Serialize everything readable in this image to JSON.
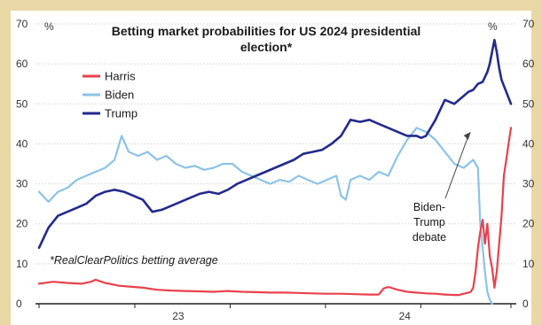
{
  "chart_data": {
    "type": "line",
    "title_lines": [
      "Betting market probabilities for US 2024 presidential",
      "election*"
    ],
    "unit_left": "%",
    "unit_right": "%",
    "ylim": [
      0,
      70
    ],
    "yticks": [
      "0",
      "10",
      "20",
      "30",
      "40",
      "50",
      "60",
      "70"
    ],
    "xlim": [
      0,
      100
    ],
    "xticks": [
      {
        "label": "23",
        "x": 29.5
      },
      {
        "label": "24",
        "x": 77.5
      }
    ],
    "grid": true,
    "legend": "top-left",
    "footnote": "*RealClearPolitics betting average",
    "annotation": {
      "lines": [
        "Biden-",
        "Trump",
        "debate"
      ],
      "x": 91.5,
      "y": 43
    },
    "series": [
      {
        "name": "Harris",
        "color": "#e8414d",
        "x": [
          0,
          3,
          6,
          9,
          11,
          12,
          14,
          17,
          20,
          22,
          25,
          28,
          31,
          34,
          37,
          40,
          43,
          46,
          49,
          52,
          55,
          58,
          61,
          64,
          67,
          70,
          72,
          73,
          74,
          76,
          78,
          80,
          82,
          84,
          86,
          88,
          89,
          90,
          91,
          91.5,
          92,
          92.5,
          93,
          93.5,
          94,
          94.5,
          95,
          95.5,
          96,
          96.5,
          97,
          97.5,
          98,
          98.5,
          99,
          99.5,
          100
        ],
        "y": [
          5,
          5.5,
          5.2,
          5,
          5.5,
          6,
          5.2,
          4.5,
          4.2,
          4,
          3.5,
          3.3,
          3.2,
          3.1,
          3,
          3.2,
          3,
          2.9,
          2.8,
          2.8,
          2.7,
          2.6,
          2.5,
          2.5,
          2.4,
          2.3,
          2.3,
          3.8,
          4.2,
          3.5,
          3,
          2.8,
          2.6,
          2.5,
          2.3,
          2.2,
          2.2,
          2.5,
          2.8,
          3,
          4,
          8,
          14,
          18,
          21,
          15,
          20,
          12,
          9,
          4,
          8,
          15,
          22,
          32,
          36,
          40,
          44
        ]
      },
      {
        "name": "Biden",
        "color": "#8cc3e6",
        "x": [
          0,
          2,
          4,
          6,
          8,
          10,
          12,
          14,
          16,
          17.5,
          19,
          21,
          23,
          25,
          27,
          29,
          31,
          33,
          35,
          37,
          39,
          41,
          43,
          45,
          47,
          49,
          51,
          53,
          55,
          57,
          59,
          61,
          63,
          64,
          65,
          66,
          68,
          70,
          72,
          74,
          76,
          78,
          80,
          82,
          84,
          86,
          88,
          90,
          91,
          92,
          93,
          93.5,
          94,
          94.5,
          95,
          95.5,
          96
        ],
        "y": [
          28,
          25.5,
          28,
          29,
          31,
          32,
          33,
          34,
          36,
          42,
          38,
          37,
          38,
          36,
          37,
          35,
          34,
          34.5,
          33.5,
          34,
          35,
          35,
          33,
          32,
          31,
          30,
          31,
          30.5,
          32,
          31,
          30,
          31,
          32,
          27,
          26,
          31,
          32,
          31,
          33,
          32,
          37,
          41,
          44,
          43,
          41,
          38,
          35,
          34,
          35,
          36,
          34,
          20,
          14,
          8,
          3,
          1,
          0
        ]
      },
      {
        "name": "Trump",
        "color": "#232a8c",
        "x": [
          0,
          2,
          4,
          6,
          8,
          10,
          12,
          14,
          16,
          18,
          20,
          22,
          24,
          26,
          28,
          30,
          32,
          34,
          36,
          38,
          40,
          42,
          44,
          46,
          48,
          50,
          52,
          54,
          56,
          58,
          60,
          62,
          64,
          66,
          68,
          70,
          72,
          74,
          76,
          78,
          80,
          81,
          82,
          84,
          86,
          88,
          90,
          91,
          92,
          93,
          94,
          95,
          95.5,
          96,
          96.5,
          97,
          97.5,
          98,
          99,
          100
        ],
        "y": [
          14,
          19,
          22,
          23,
          24,
          25,
          27,
          28,
          28.5,
          28,
          27,
          26,
          23,
          23.5,
          24.5,
          25.5,
          26.5,
          27.5,
          28,
          27.5,
          28.5,
          30,
          31,
          32,
          33,
          34,
          35,
          36,
          37.5,
          38,
          38.5,
          40,
          42,
          46,
          45.5,
          46,
          45,
          44,
          43,
          42,
          42,
          41.5,
          42,
          46,
          51,
          50,
          52,
          53,
          53.5,
          55,
          55.5,
          58,
          60,
          63,
          66,
          63,
          59,
          56,
          53,
          50
        ]
      }
    ]
  }
}
